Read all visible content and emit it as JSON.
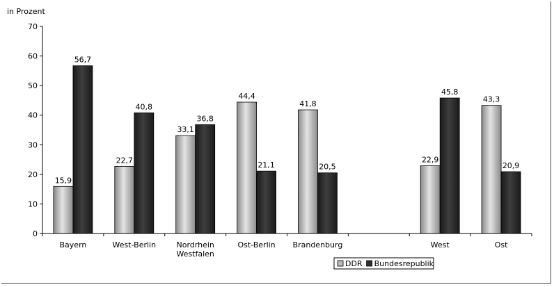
{
  "chart_data": {
    "type": "bar",
    "ylabel": "in Prozent",
    "ylim": [
      0,
      70
    ],
    "yticks": [
      0,
      10,
      20,
      30,
      40,
      50,
      60,
      70
    ],
    "grid": false,
    "legend_position": "bottom",
    "categories": [
      {
        "lines": [
          "Bayern"
        ]
      },
      {
        "lines": [
          "West-Berlin"
        ]
      },
      {
        "lines": [
          "Nordrhein",
          "Westfalen"
        ]
      },
      {
        "lines": [
          "Ost-Berlin"
        ]
      },
      {
        "lines": [
          "Brandenburg"
        ]
      },
      {
        "lines": [
          ""
        ]
      },
      {
        "lines": [
          "West"
        ]
      },
      {
        "lines": [
          "Ost"
        ]
      }
    ],
    "series": [
      {
        "name": "DDR",
        "color": "#b8b8b8",
        "values": [
          15.9,
          22.7,
          33.1,
          44.4,
          41.8,
          null,
          22.9,
          43.3
        ],
        "labels": [
          "15,9",
          "22,7",
          "33,1",
          "44,4",
          "41,8",
          "",
          "22,9",
          "43,3"
        ]
      },
      {
        "name": "Bundesrepublik",
        "color": "#2e2e2e",
        "values": [
          56.7,
          40.8,
          36.8,
          21.1,
          20.5,
          null,
          45.8,
          20.9
        ],
        "labels": [
          "56,7",
          "40,8",
          "36,8",
          "21,1",
          "20,5",
          "",
          "45,8",
          "20,9"
        ]
      }
    ]
  }
}
